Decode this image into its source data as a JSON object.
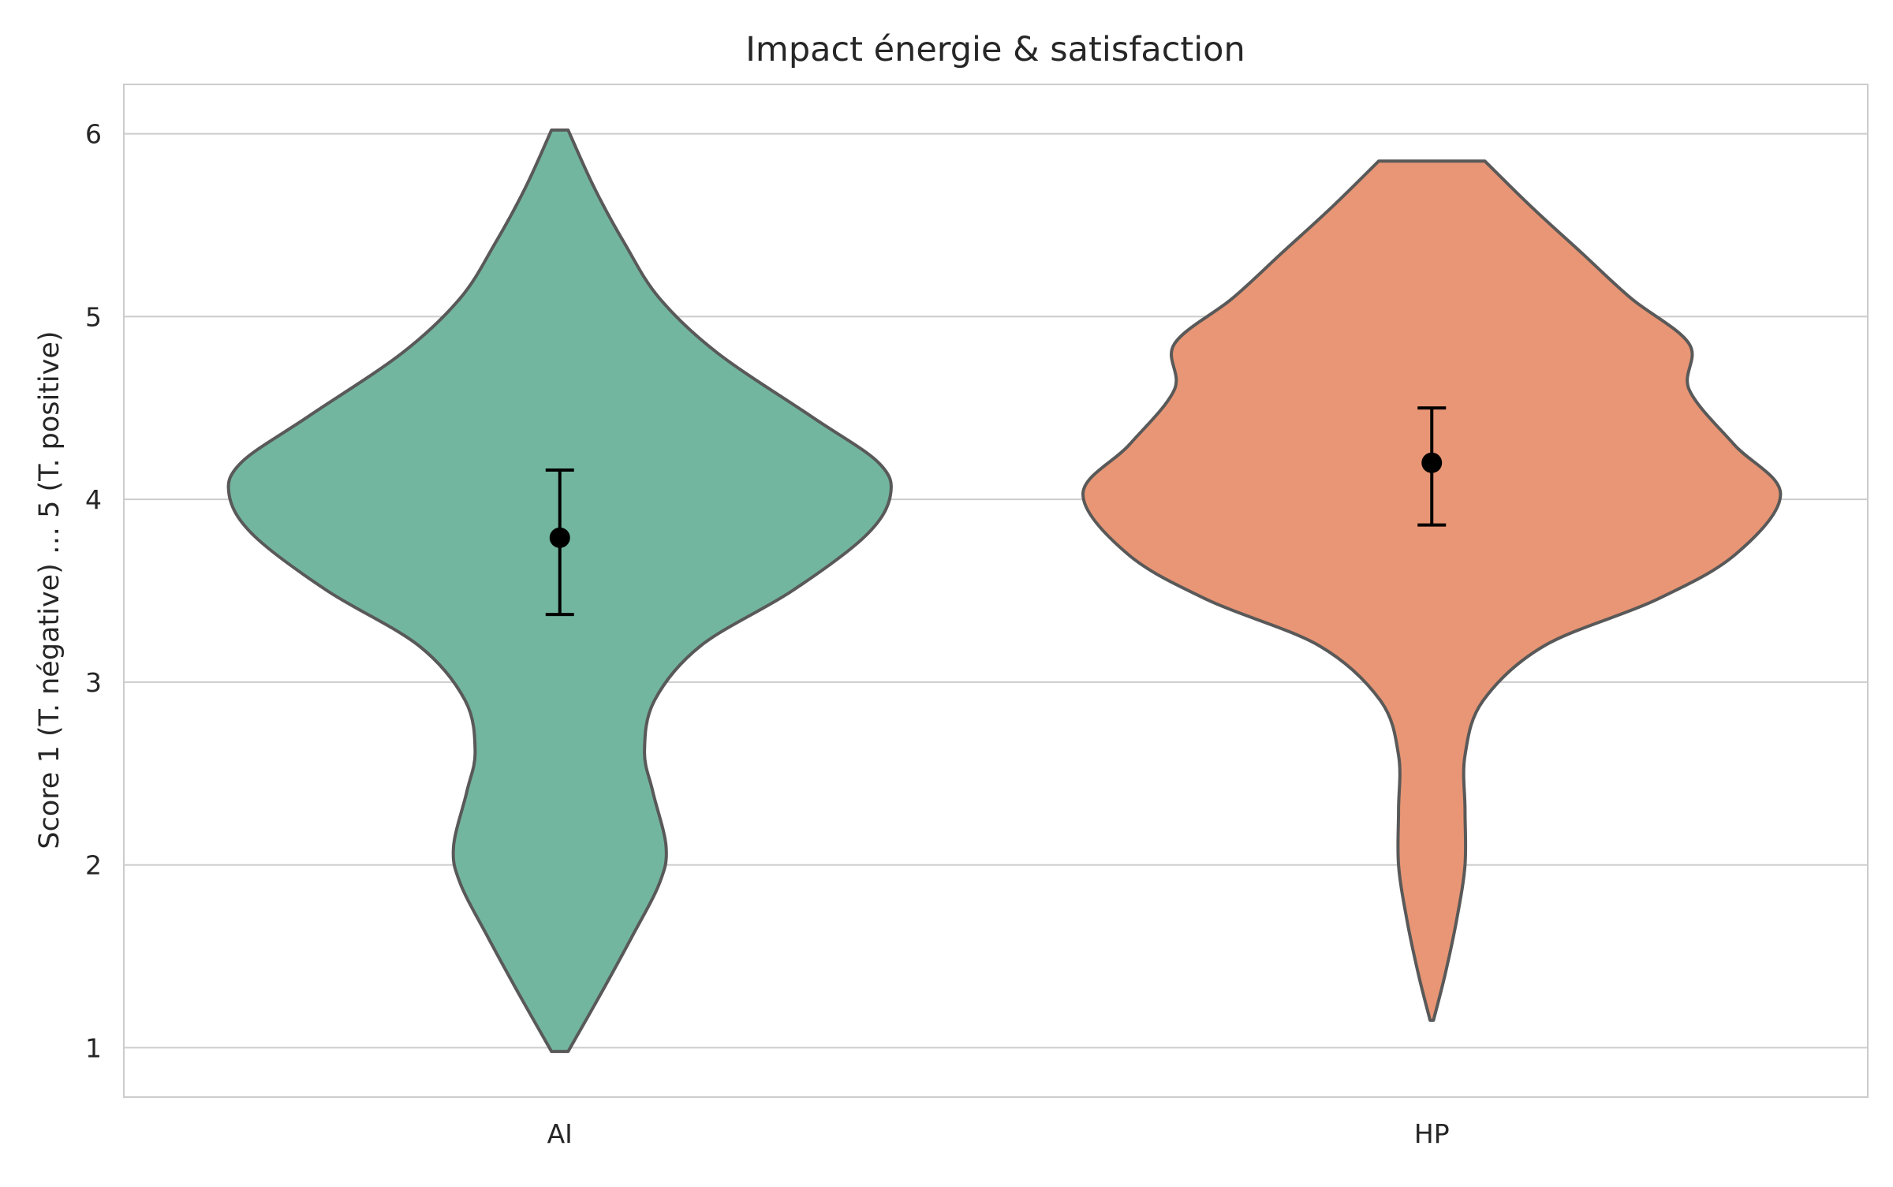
{
  "chart_data": {
    "type": "violin",
    "title": "Impact énergie & satisfaction",
    "xlabel": "",
    "ylabel": "Score 1 (T. négative)  … 5 (T. positive)",
    "categories": [
      "AI",
      "HP"
    ],
    "ylim": [
      0.73,
      6.27
    ],
    "yticks": [
      "1",
      "2",
      "3",
      "4",
      "5",
      "6"
    ],
    "grid": "horizontal",
    "series": [
      {
        "category": "AI",
        "color": "#73b6a0",
        "min": 0.98,
        "max": 6.02,
        "mean": 3.79,
        "ci_low": 3.37,
        "ci_high": 4.16,
        "density": [
          [
            0.98,
            0.05
          ],
          [
            1.3,
            0.25
          ],
          [
            1.6,
            0.43
          ],
          [
            1.9,
            0.6
          ],
          [
            2.1,
            0.64
          ],
          [
            2.4,
            0.56
          ],
          [
            2.62,
            0.51
          ],
          [
            2.9,
            0.57
          ],
          [
            3.2,
            0.85
          ],
          [
            3.5,
            1.4
          ],
          [
            3.8,
            1.84
          ],
          [
            4.02,
            1.99
          ],
          [
            4.2,
            1.92
          ],
          [
            4.45,
            1.52
          ],
          [
            4.8,
            0.95
          ],
          [
            5.1,
            0.6
          ],
          [
            5.4,
            0.39
          ],
          [
            5.7,
            0.21
          ],
          [
            6.02,
            0.05
          ]
        ]
      },
      {
        "category": "HP",
        "color": "#e89675",
        "min": 1.15,
        "max": 5.85,
        "mean": 4.2,
        "ci_low": 3.86,
        "ci_high": 4.5,
        "density": [
          [
            1.15,
            0.01
          ],
          [
            1.4,
            0.08
          ],
          [
            1.7,
            0.15
          ],
          [
            2.0,
            0.2
          ],
          [
            2.3,
            0.2
          ],
          [
            2.6,
            0.2
          ],
          [
            2.9,
            0.31
          ],
          [
            3.2,
            0.68
          ],
          [
            3.45,
            1.35
          ],
          [
            3.7,
            1.83
          ],
          [
            4.03,
            2.1
          ],
          [
            4.3,
            1.82
          ],
          [
            4.6,
            1.55
          ],
          [
            4.85,
            1.55
          ],
          [
            5.1,
            1.2
          ],
          [
            5.35,
            0.9
          ],
          [
            5.6,
            0.6
          ],
          [
            5.85,
            0.32
          ]
        ]
      }
    ]
  }
}
